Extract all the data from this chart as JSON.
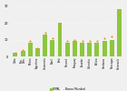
{
  "categories": [
    "Cuba",
    "Rep.\nDom.",
    "México",
    "Argentina",
    "Guatemala",
    "Brasil",
    "Perú",
    "Panamá",
    "Paraguay",
    "Ecuador",
    "Colombia",
    "Bolivia",
    "Honduras",
    "Nicaragua",
    "Venezuela"
  ],
  "cepal_values": [
    2,
    3,
    8,
    5,
    13,
    10,
    20,
    8,
    9,
    8,
    8,
    8,
    9,
    10,
    28
  ],
  "banco_values": [
    2,
    4,
    9,
    5,
    14,
    11,
    18,
    9,
    10,
    9,
    9,
    9,
    11,
    12,
    25
  ],
  "bar_color": "#8dc63f",
  "dot_color": "#f7941d",
  "background_color": "#f0f0f0",
  "legend_cepal": "CEPAL",
  "legend_banco": "Banco Mundial",
  "ylim": [
    0,
    32
  ],
  "yticks": [
    0,
    10,
    20,
    30
  ]
}
